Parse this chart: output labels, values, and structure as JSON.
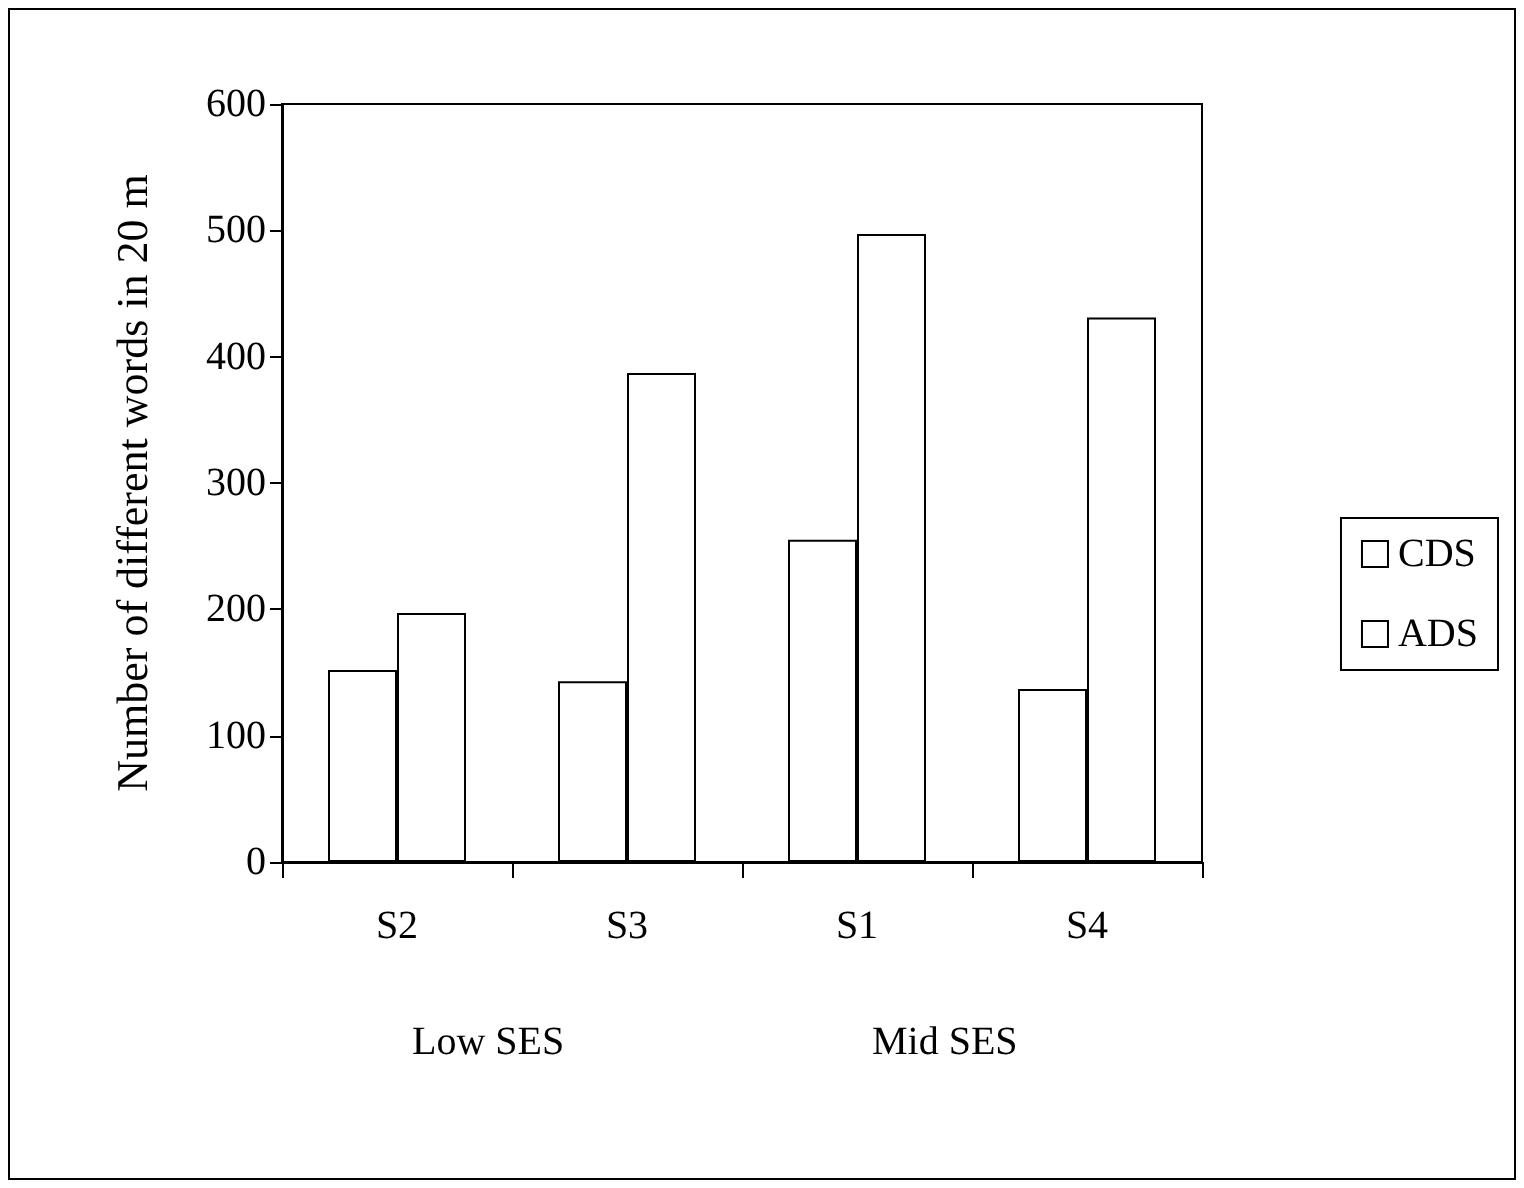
{
  "chart_data": {
    "type": "bar",
    "ylabel": "Number of different words in 20 m",
    "categories": [
      "S2",
      "S3",
      "S1",
      "S4"
    ],
    "series": [
      {
        "name": "CDS",
        "color": "#ffffff",
        "values": [
          152,
          143,
          255,
          137
        ]
      },
      {
        "name": "ADS",
        "color": "#ffffff",
        "values": [
          197,
          387,
          497,
          431
        ]
      }
    ],
    "ylim": [
      0,
      600
    ],
    "yticks": [
      0,
      100,
      200,
      300,
      400,
      500,
      600
    ],
    "grid": false,
    "legend": "right",
    "annotations": [
      "Low SES",
      "Mid SES"
    ]
  }
}
